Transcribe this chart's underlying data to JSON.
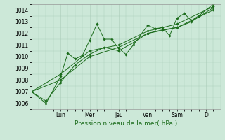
{
  "bg_color": "#cce8d8",
  "grid_color": "#aaccb8",
  "line_color": "#1a6b1a",
  "xlabel": "Pression niveau de la mer( hPa )",
  "ylim": [
    1005.5,
    1014.5
  ],
  "yticks": [
    1006,
    1007,
    1008,
    1009,
    1010,
    1011,
    1012,
    1013,
    1014
  ],
  "day_labels": [
    "Lun",
    "Mer",
    "Jeu",
    "Ven",
    "Sam",
    "D"
  ],
  "day_positions": [
    2.0,
    4.0,
    6.0,
    8.0,
    10.0,
    12.0
  ],
  "xlim": [
    0,
    13
  ],
  "series1_x": [
    0,
    1,
    2,
    2.5,
    3,
    3.5,
    4,
    4.5,
    5,
    5.5,
    6,
    6.5,
    7,
    8,
    8.5,
    9,
    9.5,
    10,
    10.5,
    11,
    11.5,
    12.5
  ],
  "series1_y": [
    1007.0,
    1006.0,
    1008.3,
    1010.3,
    1009.8,
    1010.1,
    1011.4,
    1012.8,
    1011.5,
    1011.5,
    1010.7,
    1010.2,
    1011.0,
    1012.7,
    1012.4,
    1012.5,
    1011.8,
    1013.3,
    1013.7,
    1013.1,
    1013.5,
    1014.5
  ],
  "series2_x": [
    0,
    1,
    2,
    3,
    4,
    5,
    6,
    7,
    8,
    9,
    10,
    11,
    12.5
  ],
  "series2_y": [
    1007.0,
    1006.2,
    1007.8,
    1009.3,
    1010.2,
    1010.8,
    1010.5,
    1011.2,
    1012.0,
    1012.3,
    1012.5,
    1013.0,
    1014.2
  ],
  "series3_x": [
    0,
    2,
    4,
    6,
    8,
    10,
    12.5
  ],
  "series3_y": [
    1007.0,
    1008.5,
    1010.5,
    1011.0,
    1012.2,
    1012.8,
    1014.3
  ],
  "series4_x": [
    0,
    2,
    4,
    6,
    8,
    10,
    12.5
  ],
  "series4_y": [
    1007.0,
    1008.0,
    1010.0,
    1010.8,
    1012.0,
    1012.5,
    1014.0
  ],
  "ytick_fontsize": 5.5,
  "xtick_fontsize": 5.5,
  "xlabel_fontsize": 6.5,
  "lw": 0.7,
  "ms": 1.8
}
